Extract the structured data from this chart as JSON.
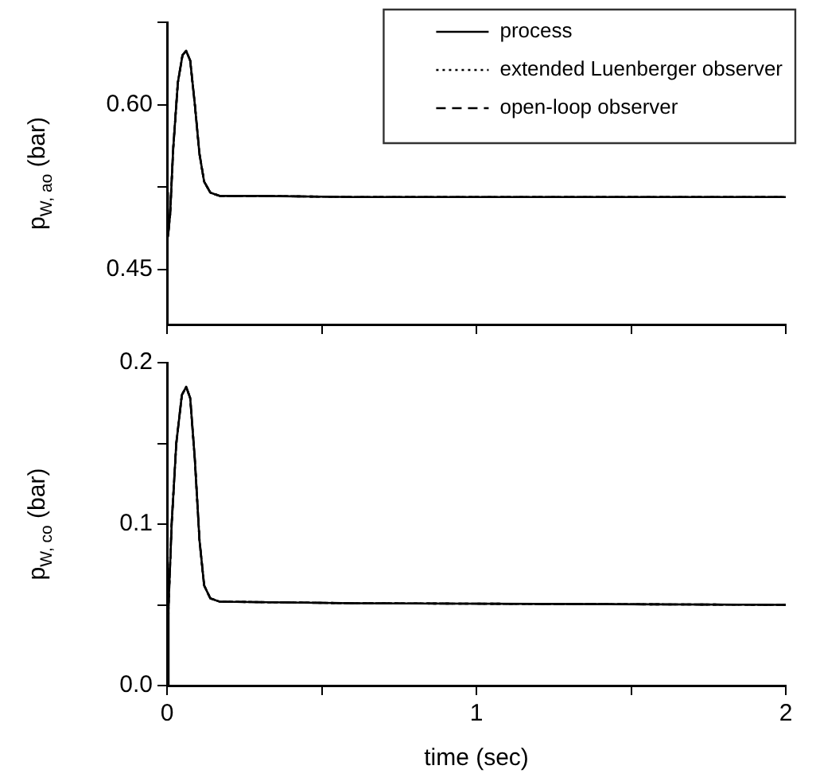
{
  "chart_data": [
    {
      "type": "line",
      "ylabel": "p$_{W, ao}$ (bar)",
      "xlim": [
        0,
        2
      ],
      "xticks": [
        {
          "value": 0,
          "label": null
        },
        {
          "value": 0.5,
          "label": null
        },
        {
          "value": 1,
          "label": null
        },
        {
          "value": 1.5,
          "label": null
        },
        {
          "value": 2,
          "label": null
        }
      ],
      "ylim": [
        0.4,
        0.675
      ],
      "yticks": [
        {
          "value": 0.45,
          "label": "0.45"
        },
        {
          "value": 0.525,
          "label": null
        },
        {
          "value": 0.6,
          "label": "0.60"
        },
        {
          "value": 0.675,
          "label": null
        }
      ],
      "tick_labels": "y",
      "grid": false,
      "legend": "top right",
      "marker": "none",
      "x": [
        0,
        0.003,
        0.01,
        0.02,
        0.035,
        0.05,
        0.062,
        0.075,
        0.09,
        0.105,
        0.12,
        0.14,
        0.17,
        0.3,
        0.6,
        1,
        2
      ],
      "series": [
        {
          "name": "process",
          "color": "#000000",
          "line_style": "solid",
          "values": [
            0.52,
            0.48,
            0.5,
            0.56,
            0.62,
            0.645,
            0.649,
            0.64,
            0.6,
            0.555,
            0.53,
            0.52,
            0.517,
            0.517,
            0.516,
            0.516,
            0.516
          ]
        },
        {
          "name": "extended Luenberger observer",
          "color": "#000000",
          "line_style": "dotted",
          "values": [
            0.52,
            0.48,
            0.5,
            0.56,
            0.62,
            0.645,
            0.649,
            0.64,
            0.6,
            0.555,
            0.53,
            0.52,
            0.517,
            0.517,
            0.516,
            0.516,
            0.516
          ]
        },
        {
          "name": "open-loop observer",
          "color": "#000000",
          "line_style": "dashed",
          "values": [
            0.52,
            0.48,
            0.5,
            0.56,
            0.62,
            0.645,
            0.649,
            0.64,
            0.6,
            0.555,
            0.53,
            0.52,
            0.517,
            0.517,
            0.516,
            0.516,
            0.516
          ]
        }
      ]
    },
    {
      "type": "line",
      "xlabel": "time (sec)",
      "ylabel": "p$_{W, co}$ (bar)",
      "xlim": [
        0,
        2
      ],
      "xticks": [
        0,
        {
          "value": 0.5,
          "label": null
        },
        1,
        {
          "value": 1.5,
          "label": null
        },
        2
      ],
      "ylim": [
        0,
        0.2
      ],
      "yticks": [
        {
          "value": 0,
          "label": "0.0"
        },
        {
          "value": 0.05,
          "label": null
        },
        {
          "value": 0.1,
          "label": "0.1"
        },
        {
          "value": 0.15,
          "label": null
        },
        {
          "value": 0.2,
          "label": "0.2"
        }
      ],
      "grid": false,
      "legend": false,
      "marker": "none",
      "x": [
        0,
        0.005,
        0.015,
        0.03,
        0.048,
        0.062,
        0.075,
        0.09,
        0.105,
        0.12,
        0.14,
        0.17,
        0.6,
        2
      ],
      "series": [
        {
          "color": "#000000",
          "line_style": "solid",
          "values": [
            0,
            0.05,
            0.1,
            0.15,
            0.18,
            0.185,
            0.178,
            0.14,
            0.09,
            0.062,
            0.054,
            0.052,
            0.051,
            0.05
          ]
        },
        {
          "color": "#000000",
          "line_style": "dotted",
          "values": [
            0,
            0.05,
            0.1,
            0.15,
            0.18,
            0.185,
            0.178,
            0.14,
            0.09,
            0.062,
            0.054,
            0.052,
            0.051,
            0.05
          ]
        },
        {
          "color": "#000000",
          "line_style": "dashed",
          "values": [
            0,
            0.05,
            0.1,
            0.15,
            0.18,
            0.185,
            0.178,
            0.14,
            0.09,
            0.062,
            0.054,
            0.052,
            0.051,
            0.05
          ]
        }
      ]
    }
  ]
}
